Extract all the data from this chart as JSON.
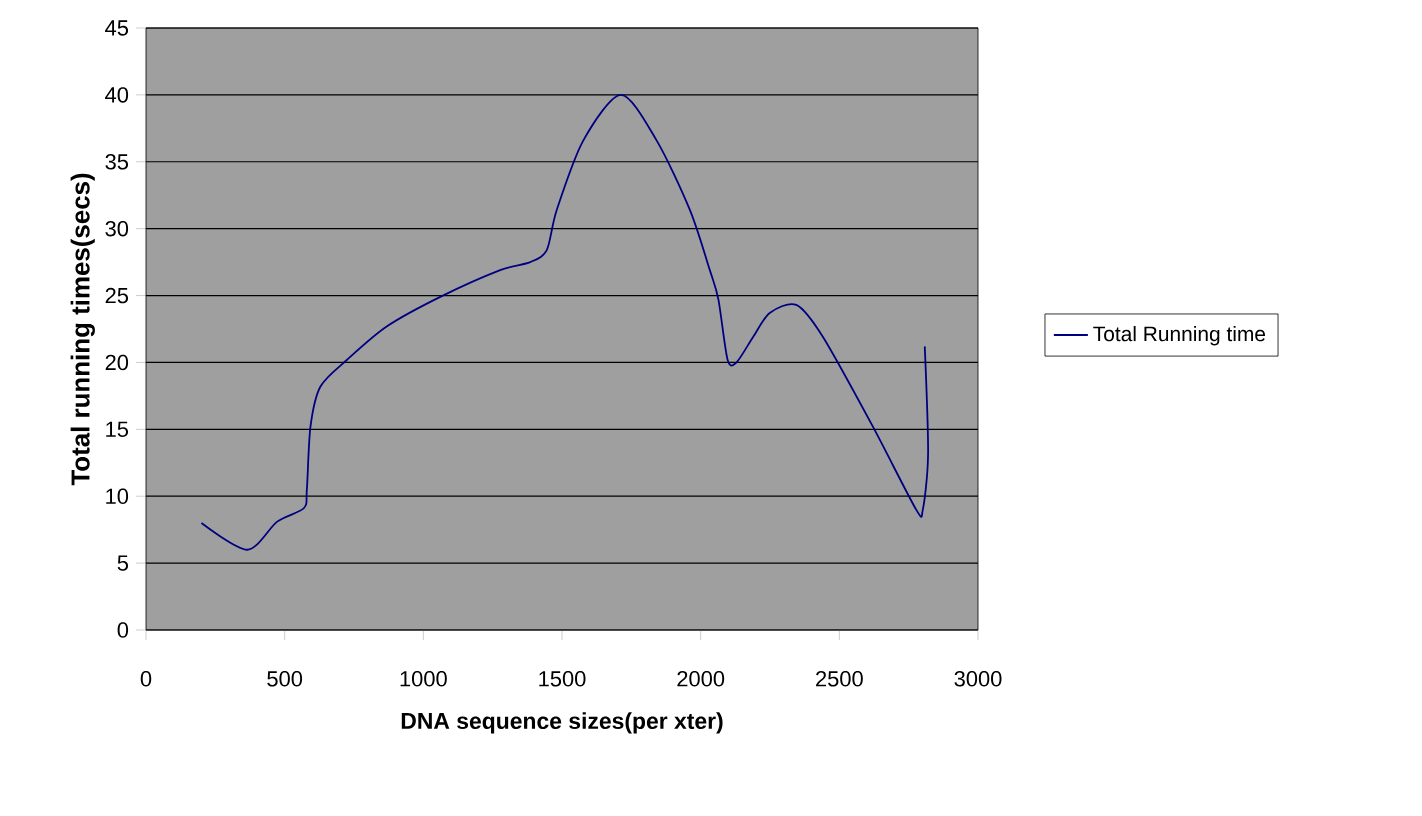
{
  "chart_data": {
    "type": "line",
    "xlabel": "DNA sequence sizes(per xter)",
    "ylabel": "Total running times(secs)",
    "xlim": [
      0,
      3000
    ],
    "xticks": [
      0,
      500,
      1000,
      1500,
      2000,
      2500,
      3000
    ],
    "ylim": [
      0,
      45
    ],
    "yticks": [
      0,
      5,
      10,
      15,
      20,
      25,
      30,
      35,
      40,
      45
    ],
    "grid": "y",
    "legend": "right",
    "marker": "none",
    "line_style": "solid",
    "series": [
      {
        "name": "Total Running time",
        "color": "#000080",
        "x": [
          200,
          365,
          473,
          569,
          580,
          593,
          629,
          725,
          869,
          1061,
          1277,
          1385,
          1445,
          1481,
          1577,
          1713,
          1841,
          1961,
          2033,
          2064,
          2097,
          2129,
          2189,
          2249,
          2345,
          2441,
          2621,
          2777,
          2801,
          2820,
          2808
        ],
        "values": [
          8,
          6,
          8.1,
          9.1,
          10.5,
          15.2,
          18.2,
          20.2,
          22.7,
          24.9,
          26.9,
          27.5,
          28.4,
          31.4,
          36.6,
          40,
          36.6,
          31.4,
          26.9,
          24.7,
          20.2,
          20,
          21.9,
          23.7,
          24.3,
          21.9,
          15.2,
          9,
          9,
          13.2,
          21.2
        ]
      }
    ]
  }
}
